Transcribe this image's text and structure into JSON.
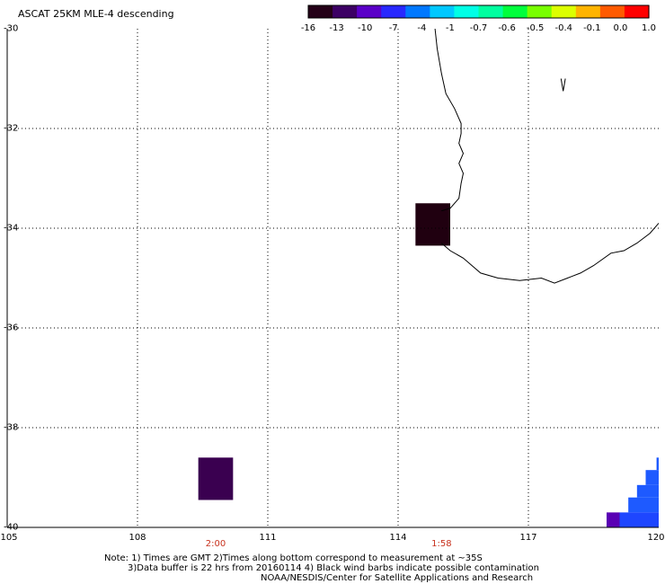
{
  "title": "ASCAT 25KM MLE-4 descending",
  "colorbar": {
    "ticks": [
      "-16",
      "-13",
      "-10",
      "-7",
      "-4",
      "-1",
      "-0.7",
      "-0.6",
      "-0.5",
      "-0.4",
      "-0.1",
      "0.0",
      "1.0"
    ],
    "colors": [
      "#240017",
      "#3c0064",
      "#5a00c8",
      "#2828ff",
      "#0078ff",
      "#00c8ff",
      "#00ffe6",
      "#00ffa0",
      "#00ff3c",
      "#78ff00",
      "#dcff00",
      "#ffb400",
      "#ff5a00",
      "#ff0000"
    ]
  },
  "axes": {
    "lon_ticks": [
      "105",
      "108",
      "111",
      "114",
      "117",
      "120"
    ],
    "lat_ticks": [
      "-30",
      "-32",
      "-34",
      "-36",
      "-38",
      "-40"
    ],
    "lon_range": [
      105,
      120
    ],
    "lat_range": [
      -40,
      -30
    ],
    "grid": "dotted"
  },
  "time_labels": [
    {
      "text": "2:00",
      "lon": 109.8
    },
    {
      "text": "1:58",
      "lon": 115.0
    }
  ],
  "notes": [
    "Note: 1) Times are GMT 2)Times along bottom correspond to measurement at ~35S",
    "3)Data buffer is 22 hrs from 20160114 4) Black wind barbs indicate possible contamination",
    "NOAA/NESDIS/Center for Satellite Applications and Research"
  ],
  "data_cells": [
    {
      "lon": [
        114.4,
        115.2
      ],
      "lat": [
        -34.35,
        -33.5
      ],
      "color": "#200010"
    },
    {
      "lon": [
        109.4,
        110.2
      ],
      "lat": [
        -39.45,
        -38.6
      ],
      "color": "#3a0050"
    },
    {
      "lon": [
        118.8,
        119.1
      ],
      "lat": [
        -40.0,
        -39.7
      ],
      "color": "#5a00b4"
    },
    {
      "lon": [
        119.1,
        120.0
      ],
      "lat": [
        -40.0,
        -39.7
      ],
      "color": "#1e46ff"
    },
    {
      "lon": [
        119.3,
        120.0
      ],
      "lat": [
        -39.7,
        -39.4
      ],
      "color": "#1e5aff"
    },
    {
      "lon": [
        119.5,
        120.0
      ],
      "lat": [
        -39.4,
        -39.15
      ],
      "color": "#1e5aff"
    },
    {
      "lon": [
        119.7,
        120.0
      ],
      "lat": [
        -39.15,
        -38.85
      ],
      "color": "#1e5aff"
    },
    {
      "lon": [
        119.95,
        120.0
      ],
      "lat": [
        -38.85,
        -38.6
      ],
      "color": "#1e5aff"
    }
  ],
  "coastline": [
    [
      [
        114.85,
        -30.0
      ],
      [
        114.9,
        -30.4
      ],
      [
        115.0,
        -30.9
      ],
      [
        115.1,
        -31.3
      ],
      [
        115.3,
        -31.6
      ],
      [
        115.45,
        -31.9
      ],
      [
        115.45,
        -32.1
      ],
      [
        115.4,
        -32.3
      ],
      [
        115.5,
        -32.5
      ],
      [
        115.4,
        -32.7
      ],
      [
        115.5,
        -32.9
      ],
      [
        115.45,
        -33.1
      ],
      [
        115.4,
        -33.4
      ],
      [
        115.2,
        -33.6
      ],
      [
        115.0,
        -33.65
      ]
    ],
    [
      [
        115.0,
        -34.3
      ],
      [
        115.2,
        -34.45
      ],
      [
        115.5,
        -34.6
      ],
      [
        115.9,
        -34.9
      ],
      [
        116.3,
        -35.0
      ],
      [
        116.8,
        -35.05
      ],
      [
        117.3,
        -35.0
      ],
      [
        117.6,
        -35.1
      ],
      [
        117.9,
        -35.0
      ],
      [
        118.2,
        -34.9
      ],
      [
        118.5,
        -34.75
      ],
      [
        118.9,
        -34.5
      ],
      [
        119.2,
        -34.45
      ],
      [
        119.5,
        -34.3
      ],
      [
        119.8,
        -34.1
      ],
      [
        120.0,
        -33.9
      ]
    ]
  ],
  "island": [
    [
      117.75,
      -31.0
    ],
    [
      117.8,
      -31.25
    ],
    [
      117.85,
      -31.0
    ]
  ]
}
